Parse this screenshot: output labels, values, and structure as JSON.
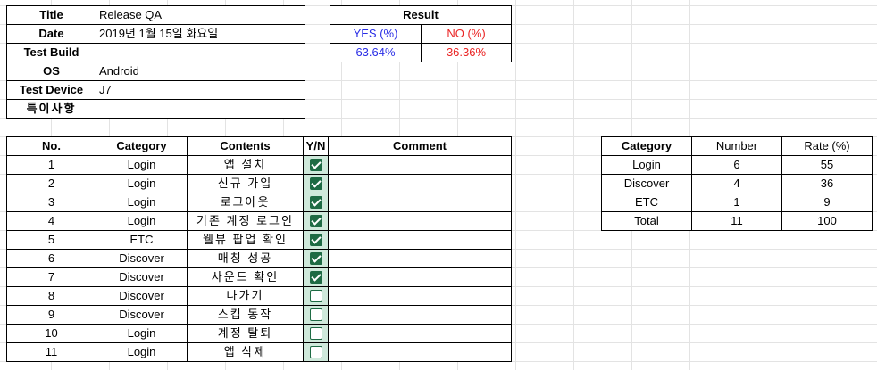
{
  "info": {
    "rows": [
      {
        "label": "Title",
        "value": "Release QA"
      },
      {
        "label": "Date",
        "value": "2019년 1월 15일 화요일"
      },
      {
        "label": "Test Build",
        "value": ""
      },
      {
        "label": "OS",
        "value": "Android"
      },
      {
        "label": "Test Device",
        "value": "J7"
      },
      {
        "label": "특이사항",
        "value": ""
      }
    ]
  },
  "result": {
    "title": "Result",
    "yes_label": "YES (%)",
    "no_label": "NO (%)",
    "yes_value": "63.64%",
    "no_value": "36.36%",
    "colors": {
      "yes": "#2a2ee6",
      "no": "#ea2424"
    }
  },
  "tests": {
    "headers": {
      "no": "No.",
      "category": "Category",
      "contents": "Contents",
      "yn": "Y/N",
      "comment": "Comment"
    },
    "rows": [
      {
        "no": "1",
        "category": "Login",
        "contents": "앱 설치",
        "checked": true,
        "comment": ""
      },
      {
        "no": "2",
        "category": "Login",
        "contents": "신규 가입",
        "checked": true,
        "comment": ""
      },
      {
        "no": "3",
        "category": "Login",
        "contents": "로그아웃",
        "checked": true,
        "comment": ""
      },
      {
        "no": "4",
        "category": "Login",
        "contents": "기존 계정 로그인",
        "checked": true,
        "comment": ""
      },
      {
        "no": "5",
        "category": "ETC",
        "contents": "웰뷰 팝업 확인",
        "checked": true,
        "comment": ""
      },
      {
        "no": "6",
        "category": "Discover",
        "contents": "매칭 성공",
        "checked": true,
        "comment": ""
      },
      {
        "no": "7",
        "category": "Discover",
        "contents": "사운드 확인",
        "checked": true,
        "comment": ""
      },
      {
        "no": "8",
        "category": "Discover",
        "contents": "나가기",
        "checked": false,
        "comment": ""
      },
      {
        "no": "9",
        "category": "Discover",
        "contents": "스킵 동작",
        "checked": false,
        "comment": ""
      },
      {
        "no": "10",
        "category": "Login",
        "contents": "계정 탈퇴",
        "checked": false,
        "comment": ""
      },
      {
        "no": "11",
        "category": "Login",
        "contents": "앱 삭제",
        "checked": false,
        "comment": ""
      }
    ]
  },
  "summary": {
    "headers": {
      "category": "Category",
      "number": "Number",
      "rate": "Rate (%)"
    },
    "rows": [
      {
        "category": "Login",
        "number": "6",
        "rate": "55"
      },
      {
        "category": "Discover",
        "number": "4",
        "rate": "36"
      },
      {
        "category": "ETC",
        "number": "1",
        "rate": "9"
      },
      {
        "category": "Total",
        "number": "11",
        "rate": "100"
      }
    ]
  }
}
